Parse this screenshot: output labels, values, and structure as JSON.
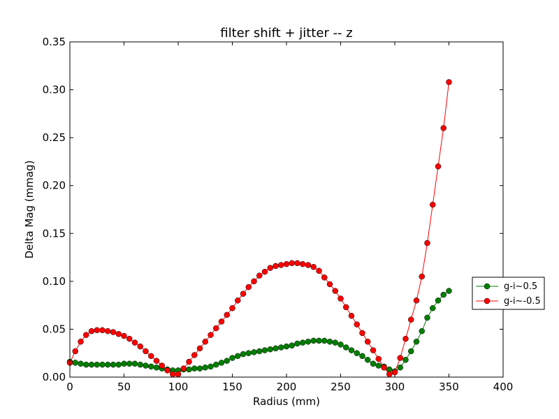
{
  "chart_data": {
    "type": "line",
    "title": "filter shift + jitter -- z",
    "xlabel": "Radius (mm)",
    "ylabel": "Delta Mag (mmag)",
    "xlim": [
      0,
      400
    ],
    "ylim": [
      0,
      0.35
    ],
    "xticks": [
      "0",
      "50",
      "100",
      "150",
      "200",
      "250",
      "300",
      "350",
      "400"
    ],
    "yticks": [
      "0.00",
      "0.05",
      "0.10",
      "0.15",
      "0.20",
      "0.25",
      "0.30",
      "0.35"
    ],
    "grid": false,
    "legend": "right",
    "series": [
      {
        "name": "g-i~0.5",
        "color": "#007f00",
        "marker": "circle",
        "x": [
          0,
          5,
          10,
          15,
          20,
          25,
          30,
          35,
          40,
          45,
          50,
          55,
          60,
          65,
          70,
          75,
          80,
          85,
          90,
          95,
          100,
          105,
          110,
          115,
          120,
          125,
          130,
          135,
          140,
          145,
          150,
          155,
          160,
          165,
          170,
          175,
          180,
          185,
          190,
          195,
          200,
          205,
          210,
          215,
          220,
          225,
          230,
          235,
          240,
          245,
          250,
          255,
          260,
          265,
          270,
          275,
          280,
          285,
          290,
          295,
          300,
          305,
          310,
          315,
          320,
          325,
          330,
          335,
          340,
          345,
          350
        ],
        "y": [
          0.016,
          0.015,
          0.014,
          0.013,
          0.013,
          0.013,
          0.013,
          0.013,
          0.013,
          0.013,
          0.014,
          0.014,
          0.014,
          0.013,
          0.012,
          0.011,
          0.01,
          0.009,
          0.008,
          0.007,
          0.007,
          0.008,
          0.008,
          0.009,
          0.009,
          0.01,
          0.011,
          0.013,
          0.015,
          0.017,
          0.02,
          0.022,
          0.024,
          0.025,
          0.026,
          0.027,
          0.028,
          0.029,
          0.03,
          0.031,
          0.032,
          0.033,
          0.035,
          0.036,
          0.037,
          0.038,
          0.038,
          0.038,
          0.037,
          0.036,
          0.034,
          0.031,
          0.028,
          0.025,
          0.022,
          0.018,
          0.014,
          0.012,
          0.011,
          0.008,
          0.006,
          0.01,
          0.018,
          0.027,
          0.037,
          0.048,
          0.062,
          0.072,
          0.08,
          0.086,
          0.09
        ]
      },
      {
        "name": "g-i~-0.5",
        "color": "#ff0000",
        "marker": "circle",
        "x": [
          0,
          5,
          10,
          15,
          20,
          25,
          30,
          35,
          40,
          45,
          50,
          55,
          60,
          65,
          70,
          75,
          80,
          85,
          90,
          95,
          100,
          105,
          110,
          115,
          120,
          125,
          130,
          135,
          140,
          145,
          150,
          155,
          160,
          165,
          170,
          175,
          180,
          185,
          190,
          195,
          200,
          205,
          210,
          215,
          220,
          225,
          230,
          235,
          240,
          245,
          250,
          255,
          260,
          265,
          270,
          275,
          280,
          285,
          290,
          295,
          300,
          305,
          310,
          315,
          320,
          325,
          330,
          335,
          340,
          345,
          350
        ],
        "y": [
          0.015,
          0.027,
          0.037,
          0.044,
          0.048,
          0.049,
          0.049,
          0.048,
          0.047,
          0.045,
          0.043,
          0.04,
          0.036,
          0.032,
          0.027,
          0.022,
          0.017,
          0.012,
          0.007,
          0.003,
          0.003,
          0.009,
          0.016,
          0.023,
          0.03,
          0.037,
          0.044,
          0.051,
          0.058,
          0.065,
          0.072,
          0.08,
          0.087,
          0.094,
          0.1,
          0.106,
          0.11,
          0.114,
          0.116,
          0.117,
          0.118,
          0.119,
          0.119,
          0.118,
          0.117,
          0.115,
          0.111,
          0.104,
          0.097,
          0.09,
          0.082,
          0.073,
          0.064,
          0.055,
          0.046,
          0.037,
          0.028,
          0.019,
          0.01,
          0.003,
          0.005,
          0.02,
          0.04,
          0.06,
          0.08,
          0.105,
          0.14,
          0.18,
          0.22,
          0.26,
          0.308
        ]
      }
    ]
  }
}
